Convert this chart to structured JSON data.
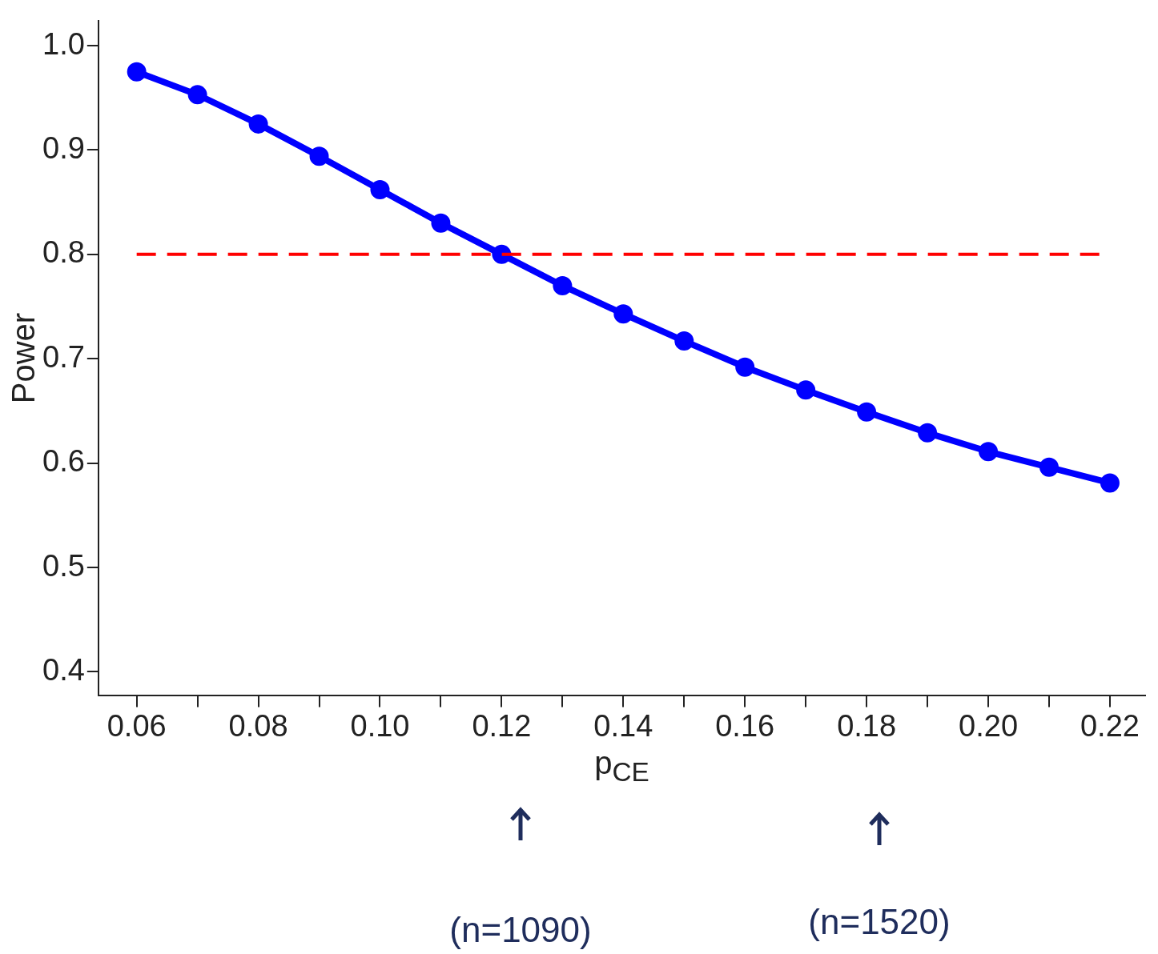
{
  "chart_data": {
    "type": "line",
    "xlabel": "p$_{CE}$",
    "ylabel": "Power",
    "x": [
      0.06,
      0.07,
      0.08,
      0.09,
      0.1,
      0.11,
      0.12,
      0.13,
      0.14,
      0.15,
      0.16,
      0.17,
      0.18,
      0.19,
      0.2,
      0.21,
      0.22
    ],
    "series": [
      {
        "color": "#0000ff",
        "values": [
          0.975,
          0.953,
          0.925,
          0.894,
          0.862,
          0.83,
          0.8,
          0.77,
          0.743,
          0.717,
          0.692,
          0.67,
          0.649,
          0.629,
          0.611,
          0.596,
          0.581
        ]
      }
    ],
    "marker": "circle",
    "line_style": "solid",
    "grid": false,
    "legend": false,
    "xlim": [
      0.0537,
      0.2258
    ],
    "xticks": [
      0.06,
      {
        "value": 0.07,
        "label": null
      },
      0.08,
      {
        "value": 0.09,
        "label": null
      },
      {
        "value": 0.1,
        "label": "0.10"
      },
      {
        "value": 0.11,
        "label": null
      },
      0.12,
      {
        "value": 0.13,
        "label": null
      },
      0.14,
      {
        "value": 0.15,
        "label": null
      },
      0.16,
      {
        "value": 0.17,
        "label": null
      },
      0.18,
      {
        "value": 0.19,
        "label": null
      },
      {
        "value": 0.2,
        "label": "0.20"
      },
      {
        "value": 0.21,
        "label": null
      },
      0.22
    ],
    "ylim": [
      0.377,
      1.024
    ],
    "yticks": [
      0.4,
      0.5,
      0.6,
      0.7,
      0.8,
      0.9,
      {
        "value": 1.0,
        "label": "1.0"
      }
    ],
    "ref_lines": [
      {
        "axis": "y",
        "value": 0.8,
        "color": "#ff0000",
        "line_style": "dashed"
      }
    ],
    "annotations": [
      "(n=1090)",
      "(n=1520)"
    ]
  }
}
